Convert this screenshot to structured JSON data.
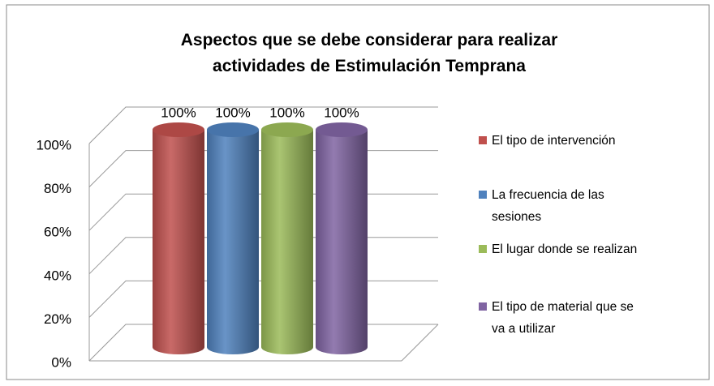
{
  "chart_data": {
    "type": "bar3d",
    "title": "Aspectos que se debe considerar para realizar actividades de Estimulación Temprana",
    "categories": [
      null
    ],
    "series": [
      {
        "name": "El tipo de intervención",
        "color": "#c0504d",
        "values": [
          100
        ],
        "value_labels": [
          "100%"
        ]
      },
      {
        "name": "La frecuencia de las sesiones",
        "color": "#4f81bd",
        "values": [
          100
        ],
        "value_labels": [
          "100%"
        ]
      },
      {
        "name": "El lugar donde se realizan",
        "color": "#9bbb59",
        "values": [
          100
        ],
        "value_labels": [
          "100%"
        ]
      },
      {
        "name": "El tipo de material que se va a utilizar",
        "color": "#8064a2",
        "values": [
          100
        ],
        "value_labels": [
          "100%"
        ]
      }
    ],
    "ylim": [
      0,
      100
    ],
    "yticks": [
      {
        "value": 0,
        "label": "0%"
      },
      {
        "value": 20,
        "label": "20%"
      },
      {
        "value": 40,
        "label": "40%"
      },
      {
        "value": 60,
        "label": "60%"
      },
      {
        "value": 80,
        "label": "80%"
      },
      {
        "value": 100,
        "label": "100%"
      }
    ],
    "grid": true,
    "legend": "right"
  }
}
